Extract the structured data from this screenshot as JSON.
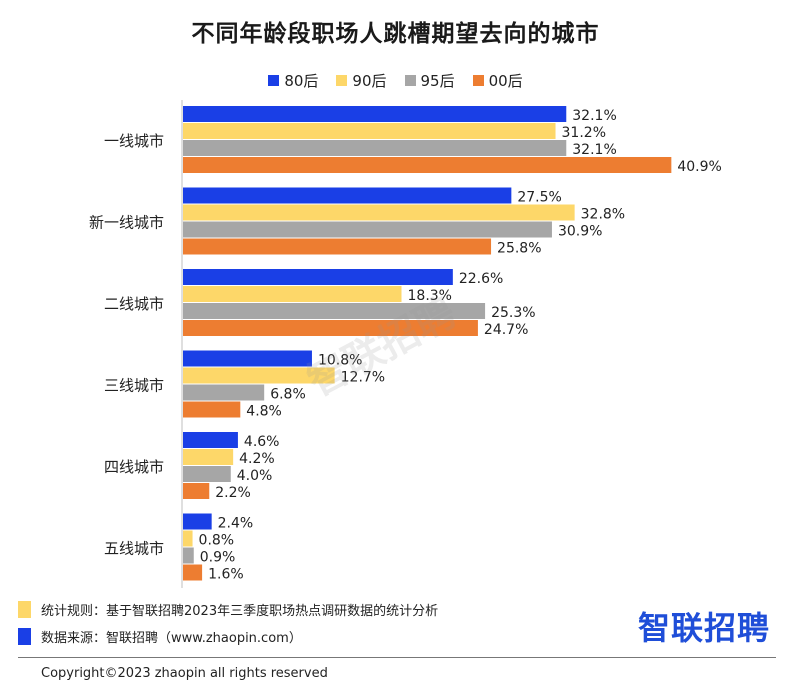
{
  "chart_data": {
    "type": "bar",
    "orientation": "horizontal",
    "title": "不同年龄段职场人跳槽期望去向的城市",
    "categories": [
      "一线城市",
      "新一线城市",
      "二线城市",
      "三线城市",
      "四线城市",
      "五线城市"
    ],
    "series": [
      {
        "name": "80后",
        "color": "#1a3fe6",
        "values": [
          32.1,
          27.5,
          22.6,
          10.8,
          4.6,
          2.4
        ],
        "labels": [
          "32.1%",
          "27.5%",
          "22.6%",
          "10.8%",
          "4.6%",
          "2.4%"
        ]
      },
      {
        "name": "90后",
        "color": "#fdd769",
        "values": [
          31.2,
          32.8,
          18.3,
          12.7,
          4.2,
          0.8
        ],
        "labels": [
          "31.2%",
          "32.8%",
          "18.3%",
          "12.7%",
          "4.2%",
          "0.8%"
        ]
      },
      {
        "name": "95后",
        "color": "#a6a6a6",
        "values": [
          32.1,
          30.9,
          25.3,
          6.8,
          4.0,
          0.9
        ],
        "labels": [
          "32.1%",
          "30.9%",
          "25.3%",
          "6.8%",
          "4.0%",
          "0.9%"
        ]
      },
      {
        "name": "00后",
        "color": "#ed7d31",
        "values": [
          40.9,
          25.8,
          24.7,
          4.8,
          2.2,
          1.6
        ],
        "labels": [
          "40.9%",
          "25.8%",
          "24.7%",
          "4.8%",
          "2.2%",
          "1.6%"
        ]
      }
    ],
    "xlim": [
      0,
      45
    ],
    "legend_position": "top",
    "grid": false
  },
  "notes": [
    {
      "text": "统计规则：基于智联招聘2023年三季度职场热点调研数据的统计分析",
      "color": "#fdd769"
    },
    {
      "text": "数据来源：智联招聘（www.zhaopin.com）",
      "color": "#1a3fe6"
    }
  ],
  "brand": "智联招聘",
  "watermark": "智联招聘",
  "copyright": "Copyright©2023 zhaopin all rights reserved"
}
